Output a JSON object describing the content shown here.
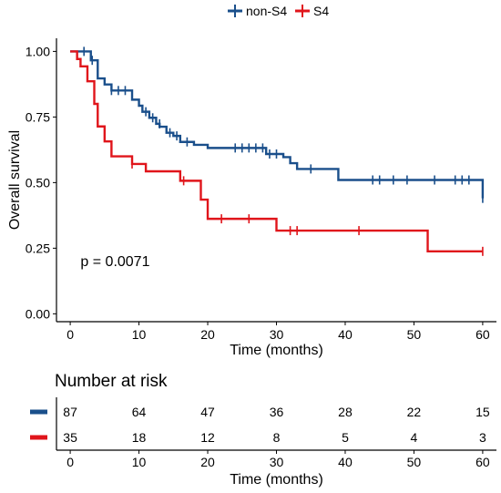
{
  "chart_data": {
    "type": "line",
    "subtype": "kaplan-meier",
    "legend": {
      "placement": "top"
    },
    "xlabel": "Time (months)",
    "ylabel": "Overall survival",
    "xlim": [
      -2,
      62
    ],
    "ylim": [
      -0.03,
      1.05
    ],
    "xticks": [
      "0",
      "10",
      "20",
      "30",
      "40",
      "50",
      "60"
    ],
    "xtick_values": [
      0,
      10,
      20,
      30,
      40,
      50,
      60
    ],
    "yticks": [
      "0.00",
      "0.25",
      "0.50",
      "0.75",
      "1.00"
    ],
    "ytick_values": [
      0,
      0.25,
      0.5,
      0.75,
      1.0
    ],
    "grid": false,
    "annotation": "p = 0.0071",
    "annotation_pos": {
      "x": 1.5,
      "y": 0.2
    },
    "series": [
      {
        "name": "non-S4",
        "color": "#1a4f8b",
        "steps": [
          [
            0,
            1.0
          ],
          [
            3,
            0.966
          ],
          [
            4,
            0.897
          ],
          [
            5,
            0.874
          ],
          [
            6,
            0.851
          ],
          [
            9,
            0.816
          ],
          [
            10,
            0.793
          ],
          [
            10.5,
            0.77
          ],
          [
            11.5,
            0.747
          ],
          [
            12.5,
            0.724
          ],
          [
            13,
            0.713
          ],
          [
            14,
            0.69
          ],
          [
            15,
            0.678
          ],
          [
            16,
            0.655
          ],
          [
            18,
            0.644
          ],
          [
            20,
            0.632
          ],
          [
            28.5,
            0.609
          ],
          [
            31,
            0.597
          ],
          [
            32,
            0.574
          ],
          [
            33,
            0.552
          ],
          [
            39,
            0.51
          ],
          [
            60,
            0.44
          ]
        ],
        "censor": [
          [
            2,
            1.0
          ],
          [
            3.2,
            0.966
          ],
          [
            6,
            0.851
          ],
          [
            7,
            0.851
          ],
          [
            8,
            0.851
          ],
          [
            11,
            0.77
          ],
          [
            12,
            0.747
          ],
          [
            13,
            0.724
          ],
          [
            14.5,
            0.69
          ],
          [
            15.5,
            0.678
          ],
          [
            17,
            0.655
          ],
          [
            24,
            0.632
          ],
          [
            25,
            0.632
          ],
          [
            26,
            0.632
          ],
          [
            27,
            0.632
          ],
          [
            28,
            0.632
          ],
          [
            29,
            0.609
          ],
          [
            30,
            0.609
          ],
          [
            35,
            0.552
          ],
          [
            44,
            0.51
          ],
          [
            45,
            0.51
          ],
          [
            47,
            0.51
          ],
          [
            49,
            0.51
          ],
          [
            53,
            0.51
          ],
          [
            56,
            0.51
          ],
          [
            57,
            0.51
          ],
          [
            58,
            0.51
          ],
          [
            60,
            0.44
          ]
        ]
      },
      {
        "name": "S4",
        "color": "#e0151b",
        "steps": [
          [
            0,
            1.0
          ],
          [
            1,
            0.971
          ],
          [
            1.5,
            0.943
          ],
          [
            2.5,
            0.886
          ],
          [
            3.5,
            0.8
          ],
          [
            4,
            0.714
          ],
          [
            5,
            0.657
          ],
          [
            6,
            0.6
          ],
          [
            9,
            0.571
          ],
          [
            11,
            0.543
          ],
          [
            16,
            0.507
          ],
          [
            19,
            0.435
          ],
          [
            20,
            0.362
          ],
          [
            30,
            0.317
          ],
          [
            52,
            0.238
          ]
        ],
        "censor": [
          [
            9,
            0.571
          ],
          [
            16.5,
            0.507
          ],
          [
            22,
            0.362
          ],
          [
            26,
            0.362
          ],
          [
            32,
            0.317
          ],
          [
            33,
            0.317
          ],
          [
            42,
            0.317
          ],
          [
            60,
            0.238
          ]
        ]
      }
    ],
    "risk_table": {
      "title": "Number at risk",
      "xlabel": "Time (months)",
      "times": [
        0,
        10,
        20,
        30,
        40,
        50,
        60
      ],
      "rows": [
        {
          "group": "non-S4",
          "color": "#1a4f8b",
          "values": [
            "87",
            "64",
            "47",
            "36",
            "28",
            "22",
            "15"
          ]
        },
        {
          "group": "S4",
          "color": "#e0151b",
          "values": [
            "35",
            "18",
            "12",
            "8",
            "5",
            "4",
            "3"
          ]
        }
      ]
    }
  }
}
